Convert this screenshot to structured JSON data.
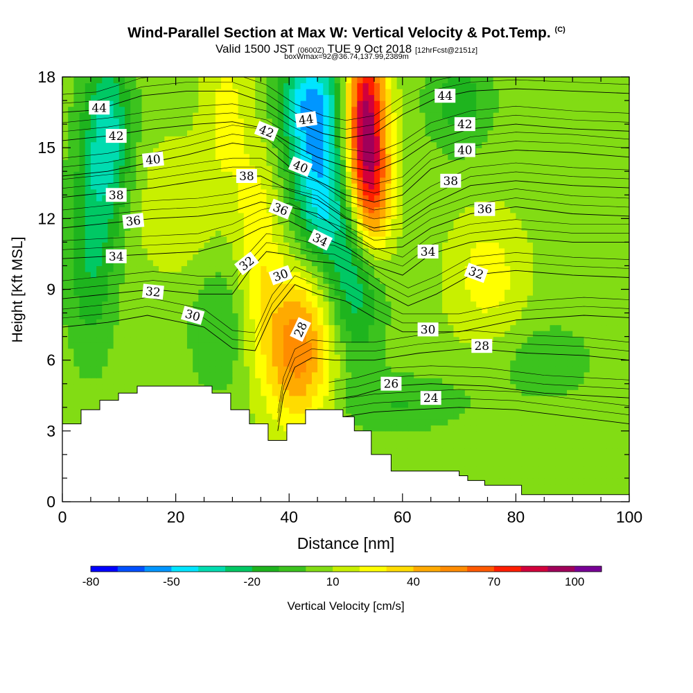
{
  "title": {
    "main": "Wind-Parallel Section at Max W: Vertical Velocity & Pot.Temp.",
    "copyright": "(C)",
    "valid_prefix": "Valid 1500 JST",
    "valid_utc": "(0600Z)",
    "valid_suffix": "TUE 9 Oct 2018",
    "forecast": "[12hrFcst@2151z]",
    "boxinfo": "boxWmax=92@36.74,137.99,2389m"
  },
  "chart_data": {
    "type": "heatmap",
    "xlabel": "Distance [nm]",
    "ylabel": "Height [Kft MSL]",
    "xlim": [
      0,
      100
    ],
    "ylim": [
      0,
      18
    ],
    "xticks": [
      0,
      20,
      40,
      60,
      80,
      100
    ],
    "yticks": [
      0,
      3,
      6,
      9,
      12,
      15,
      18
    ],
    "colorbar": {
      "label": "Vertical Velocity [cm/s]",
      "tick_labels": [
        "-80",
        "-50",
        "-20",
        "10",
        "40",
        "70",
        "100"
      ],
      "tick_values": [
        -80,
        -50,
        -20,
        10,
        40,
        70,
        100
      ],
      "bin_edges": [
        -80,
        -70,
        -60,
        -50,
        -40,
        -30,
        -20,
        -10,
        0,
        10,
        20,
        30,
        40,
        50,
        60,
        70,
        80,
        90,
        100,
        110
      ],
      "colors": [
        "#0000ff",
        "#0050ff",
        "#0096ff",
        "#00e5ff",
        "#00dcb0",
        "#00c864",
        "#1eb41e",
        "#3cc31e",
        "#82dc14",
        "#c8f000",
        "#ffff00",
        "#ffdc00",
        "#ffaa00",
        "#ff8c00",
        "#ff5a00",
        "#ff1e00",
        "#d2003c",
        "#a0005a",
        "#780096"
      ]
    },
    "background_velocity_cm_s": 5,
    "velocity_features": [
      {
        "x": 53.5,
        "y": 16.0,
        "value": 92,
        "sx": 2.6,
        "sy": 2.8
      },
      {
        "x": 55.0,
        "y": 12.6,
        "value": 35,
        "sx": 2.5,
        "sy": 1.8
      },
      {
        "x": 41.5,
        "y": 6.5,
        "value": 52,
        "sx": 4.5,
        "sy": 2.3
      },
      {
        "x": 34.5,
        "y": 11.0,
        "value": 22,
        "sx": 2.8,
        "sy": 3.0
      },
      {
        "x": 29.0,
        "y": 16.5,
        "value": 18,
        "sx": 3.0,
        "sy": 2.5
      },
      {
        "x": 44.0,
        "y": 16.8,
        "value": -55,
        "sx": 4.0,
        "sy": 1.8
      },
      {
        "x": 45.5,
        "y": 13.0,
        "value": -45,
        "sx": 3.5,
        "sy": 2.0
      },
      {
        "x": 51.5,
        "y": 9.5,
        "value": -35,
        "sx": 3.5,
        "sy": 2.5
      },
      {
        "x": 8.0,
        "y": 15.5,
        "value": -40,
        "sx": 3.0,
        "sy": 2.5
      },
      {
        "x": 5.0,
        "y": 10.5,
        "value": -25,
        "sx": 3.0,
        "sy": 3.0
      },
      {
        "x": 70.0,
        "y": 17.0,
        "value": -20,
        "sx": 4.0,
        "sy": 1.5
      },
      {
        "x": 75.0,
        "y": 9.5,
        "value": 20,
        "sx": 5.0,
        "sy": 2.0
      },
      {
        "x": 28.0,
        "y": 7.5,
        "value": -15,
        "sx": 4.0,
        "sy": 2.0
      },
      {
        "x": 60.0,
        "y": 4.2,
        "value": -15,
        "sx": 8.0,
        "sy": 0.8
      },
      {
        "x": 85.0,
        "y": 6.0,
        "value": -12,
        "sx": 6.0,
        "sy": 1.2
      },
      {
        "x": 20.0,
        "y": 12.5,
        "value": 15,
        "sx": 5.0,
        "sy": 2.0
      }
    ],
    "terrain_profile": [
      {
        "x": 0,
        "height": 3.3
      },
      {
        "x": 3.3,
        "height": 3.9
      },
      {
        "x": 6.6,
        "height": 4.3
      },
      {
        "x": 9.9,
        "height": 4.6
      },
      {
        "x": 13.2,
        "height": 4.9
      },
      {
        "x": 26.4,
        "height": 4.6
      },
      {
        "x": 29.7,
        "height": 3.9
      },
      {
        "x": 33.0,
        "height": 3.3
      },
      {
        "x": 36.3,
        "height": 2.6
      },
      {
        "x": 39.6,
        "height": 3.3
      },
      {
        "x": 42.9,
        "height": 3.9
      },
      {
        "x": 49.5,
        "height": 3.6
      },
      {
        "x": 51.5,
        "height": 3.0
      },
      {
        "x": 54.5,
        "height": 2.0
      },
      {
        "x": 58.0,
        "height": 1.3
      },
      {
        "x": 70.0,
        "height": 1.1
      },
      {
        "x": 71.5,
        "height": 0.9
      },
      {
        "x": 74.5,
        "height": 0.7
      },
      {
        "x": 81.0,
        "height": 0.3
      },
      {
        "x": 100,
        "height": 0.3
      }
    ],
    "isentropes": [
      {
        "label": "24",
        "points": [
          [
            49.5,
            3.6
          ],
          [
            55,
            3.8
          ],
          [
            62,
            3.9
          ],
          [
            70,
            4.0
          ],
          [
            80,
            3.9
          ],
          [
            90,
            3.6
          ],
          [
            100,
            3.3
          ]
        ]
      },
      {
        "label": "26",
        "points": [
          [
            47,
            4.3
          ],
          [
            52,
            4.5
          ],
          [
            58,
            4.9
          ],
          [
            65,
            5.0
          ],
          [
            75,
            4.9
          ],
          [
            85,
            4.6
          ],
          [
            100,
            4.4
          ]
        ]
      },
      {
        "label": "28",
        "points": [
          [
            38,
            3.0
          ],
          [
            39,
            4.5
          ],
          [
            41,
            5.7
          ],
          [
            44,
            6.1
          ],
          [
            48,
            6.0
          ],
          [
            55,
            6.0
          ],
          [
            63,
            6.3
          ],
          [
            72,
            6.5
          ],
          [
            82,
            6.3
          ],
          [
            92,
            6.2
          ],
          [
            100,
            6.0
          ]
        ]
      },
      {
        "label": "30",
        "points": [
          [
            0,
            7.4
          ],
          [
            8,
            7.6
          ],
          [
            15,
            7.9
          ],
          [
            25,
            7.4
          ],
          [
            30,
            6.5
          ],
          [
            34,
            6.4
          ],
          [
            37,
            8.0
          ],
          [
            41,
            9.2
          ],
          [
            45,
            8.8
          ],
          [
            50,
            8.5
          ],
          [
            55,
            7.8
          ],
          [
            60,
            7.2
          ],
          [
            70,
            7.2
          ],
          [
            80,
            7.7
          ],
          [
            92,
            7.9
          ],
          [
            100,
            7.8
          ]
        ]
      },
      {
        "label": "32",
        "points": [
          [
            0,
            8.6
          ],
          [
            8,
            8.8
          ],
          [
            16,
            9.0
          ],
          [
            24,
            8.8
          ],
          [
            30,
            8.8
          ],
          [
            33,
            9.8
          ],
          [
            36,
            10.6
          ],
          [
            39,
            10.5
          ],
          [
            44,
            10.2
          ],
          [
            48,
            10.1
          ],
          [
            52,
            9.6
          ],
          [
            57,
            8.8
          ],
          [
            61,
            8.3
          ],
          [
            66,
            8.8
          ],
          [
            72,
            9.6
          ],
          [
            80,
            9.8
          ],
          [
            90,
            9.6
          ],
          [
            100,
            9.5
          ]
        ]
      },
      {
        "label": "34",
        "points": [
          [
            0,
            10.3
          ],
          [
            8,
            10.4
          ],
          [
            16,
            10.5
          ],
          [
            24,
            10.6
          ],
          [
            30,
            11.0
          ],
          [
            35,
            11.6
          ],
          [
            40,
            11.9
          ],
          [
            45,
            11.3
          ],
          [
            50,
            10.8
          ],
          [
            55,
            10.0
          ],
          [
            60,
            9.6
          ],
          [
            65,
            10.5
          ],
          [
            72,
            11.0
          ],
          [
            80,
            11.2
          ],
          [
            90,
            11.0
          ],
          [
            100,
            11.0
          ]
        ]
      },
      {
        "label": "36",
        "points": [
          [
            0,
            11.6
          ],
          [
            8,
            11.8
          ],
          [
            16,
            12.0
          ],
          [
            24,
            12.1
          ],
          [
            30,
            12.3
          ],
          [
            35,
            12.7
          ],
          [
            40,
            12.5
          ],
          [
            45,
            12.2
          ],
          [
            50,
            11.3
          ],
          [
            55,
            10.7
          ],
          [
            60,
            10.8
          ],
          [
            65,
            11.6
          ],
          [
            72,
            12.2
          ],
          [
            80,
            12.5
          ],
          [
            90,
            12.2
          ],
          [
            100,
            12.1
          ]
        ]
      },
      {
        "label": "38",
        "points": [
          [
            0,
            12.9
          ],
          [
            8,
            13.1
          ],
          [
            16,
            13.3
          ],
          [
            24,
            13.6
          ],
          [
            30,
            13.8
          ],
          [
            35,
            13.8
          ],
          [
            40,
            13.2
          ],
          [
            45,
            12.8
          ],
          [
            50,
            12.0
          ],
          [
            55,
            11.6
          ],
          [
            60,
            11.8
          ],
          [
            65,
            12.6
          ],
          [
            72,
            13.4
          ],
          [
            80,
            13.6
          ],
          [
            90,
            13.4
          ],
          [
            100,
            13.3
          ]
        ]
      },
      {
        "label": "40",
        "points": [
          [
            0,
            13.8
          ],
          [
            8,
            14.0
          ],
          [
            14,
            14.3
          ],
          [
            22,
            14.7
          ],
          [
            30,
            15.2
          ],
          [
            36,
            15.0
          ],
          [
            40,
            14.2
          ],
          [
            45,
            13.6
          ],
          [
            50,
            13.0
          ],
          [
            55,
            12.7
          ],
          [
            60,
            13.0
          ],
          [
            65,
            14.1
          ],
          [
            72,
            14.7
          ],
          [
            80,
            14.9
          ],
          [
            90,
            14.8
          ],
          [
            100,
            14.6
          ]
        ]
      },
      {
        "label": "42",
        "points": [
          [
            0,
            15.3
          ],
          [
            8,
            15.5
          ],
          [
            16,
            15.8
          ],
          [
            24,
            16.0
          ],
          [
            30,
            16.1
          ],
          [
            36,
            15.8
          ],
          [
            40,
            15.2
          ],
          [
            45,
            14.6
          ],
          [
            50,
            14.2
          ],
          [
            55,
            14.0
          ],
          [
            60,
            14.5
          ],
          [
            65,
            15.3
          ],
          [
            72,
            15.8
          ],
          [
            80,
            16.0
          ],
          [
            90,
            15.8
          ],
          [
            100,
            15.7
          ]
        ]
      },
      {
        "label": "44",
        "points": [
          [
            0,
            16.5
          ],
          [
            6,
            16.6
          ],
          [
            14,
            17.2
          ],
          [
            22,
            17.4
          ],
          [
            30,
            17.4
          ],
          [
            36,
            16.9
          ],
          [
            41,
            16.1
          ],
          [
            46,
            15.6
          ],
          [
            50,
            15.4
          ],
          [
            55,
            15.6
          ],
          [
            60,
            16.4
          ],
          [
            66,
            17.1
          ],
          [
            72,
            17.4
          ],
          [
            80,
            17.5
          ],
          [
            90,
            17.4
          ],
          [
            100,
            17.3
          ]
        ]
      }
    ],
    "contour_labels": [
      {
        "text": "44",
        "x": 6.5,
        "y": 16.7,
        "rot": 0
      },
      {
        "text": "42",
        "x": 9.5,
        "y": 15.5,
        "rot": 0
      },
      {
        "text": "40",
        "x": 16.0,
        "y": 14.5,
        "rot": -6
      },
      {
        "text": "38",
        "x": 9.5,
        "y": 13.0,
        "rot": 0
      },
      {
        "text": "36",
        "x": 12.5,
        "y": 11.9,
        "rot": -6
      },
      {
        "text": "34",
        "x": 9.5,
        "y": 10.4,
        "rot": 0
      },
      {
        "text": "32",
        "x": 16.0,
        "y": 8.9,
        "rot": 6
      },
      {
        "text": "30",
        "x": 23.0,
        "y": 7.9,
        "rot": 16
      },
      {
        "text": "38",
        "x": 32.5,
        "y": 13.8,
        "rot": 0
      },
      {
        "text": "32",
        "x": 32.5,
        "y": 10.1,
        "rot": -38
      },
      {
        "text": "30",
        "x": 38.5,
        "y": 9.6,
        "rot": -20
      },
      {
        "text": "28",
        "x": 42.0,
        "y": 7.3,
        "rot": -65
      },
      {
        "text": "42",
        "x": 36.0,
        "y": 15.7,
        "rot": 22
      },
      {
        "text": "44",
        "x": 43.0,
        "y": 16.2,
        "rot": -8
      },
      {
        "text": "40",
        "x": 42.0,
        "y": 14.2,
        "rot": 22
      },
      {
        "text": "36",
        "x": 38.5,
        "y": 12.4,
        "rot": 22
      },
      {
        "text": "34",
        "x": 45.5,
        "y": 11.1,
        "rot": 26
      },
      {
        "text": "44",
        "x": 67.5,
        "y": 17.2,
        "rot": 0
      },
      {
        "text": "42",
        "x": 71.0,
        "y": 16.0,
        "rot": 0
      },
      {
        "text": "40",
        "x": 71.0,
        "y": 14.9,
        "rot": 0
      },
      {
        "text": "38",
        "x": 68.5,
        "y": 13.6,
        "rot": 0
      },
      {
        "text": "36",
        "x": 74.5,
        "y": 12.4,
        "rot": 0
      },
      {
        "text": "34",
        "x": 64.5,
        "y": 10.6,
        "rot": 0
      },
      {
        "text": "32",
        "x": 73.0,
        "y": 9.7,
        "rot": 20
      },
      {
        "text": "30",
        "x": 64.5,
        "y": 7.3,
        "rot": 0
      },
      {
        "text": "28",
        "x": 74.0,
        "y": 6.6,
        "rot": 0
      },
      {
        "text": "26",
        "x": 58.0,
        "y": 5.0,
        "rot": 0
      },
      {
        "text": "24",
        "x": 65.0,
        "y": 4.4,
        "rot": 0
      }
    ]
  }
}
